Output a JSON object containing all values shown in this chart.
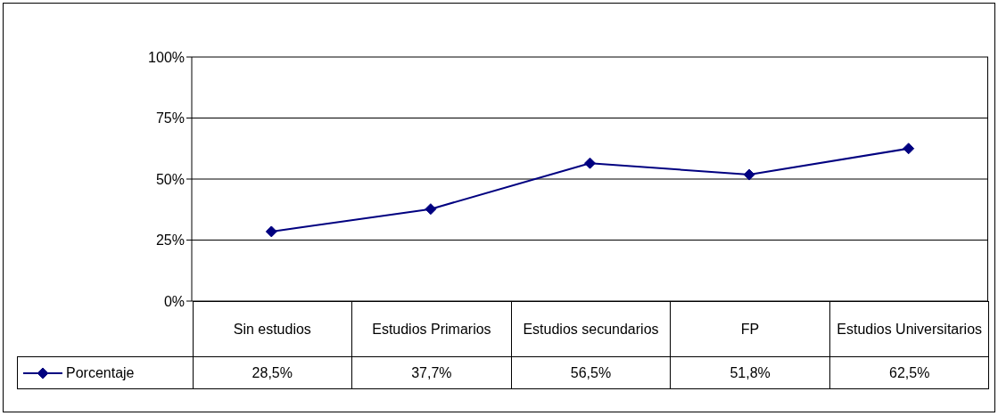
{
  "chart_data": {
    "type": "line",
    "categories": [
      "Sin estudios",
      "Estudios Primarios",
      "Estudios secundarios",
      "FP",
      "Estudios Universitarios"
    ],
    "series": [
      {
        "name": "Porcentaje",
        "color": "#000080",
        "values": [
          28.5,
          37.7,
          56.5,
          51.8,
          62.5
        ],
        "value_labels": [
          "28,5%",
          "37,7%",
          "56,5%",
          "51,8%",
          "62,5%"
        ]
      }
    ],
    "ylim": [
      0,
      100
    ],
    "yticks": [
      {
        "value": 0,
        "label": "0%"
      },
      {
        "value": 25,
        "label": "25%"
      },
      {
        "value": 50,
        "label": "50%"
      },
      {
        "value": 75,
        "label": "75%"
      },
      {
        "value": 100,
        "label": "100%"
      }
    ],
    "grid": "y",
    "marker": "diamond",
    "line_style": "solid",
    "legend": "bottom left"
  }
}
